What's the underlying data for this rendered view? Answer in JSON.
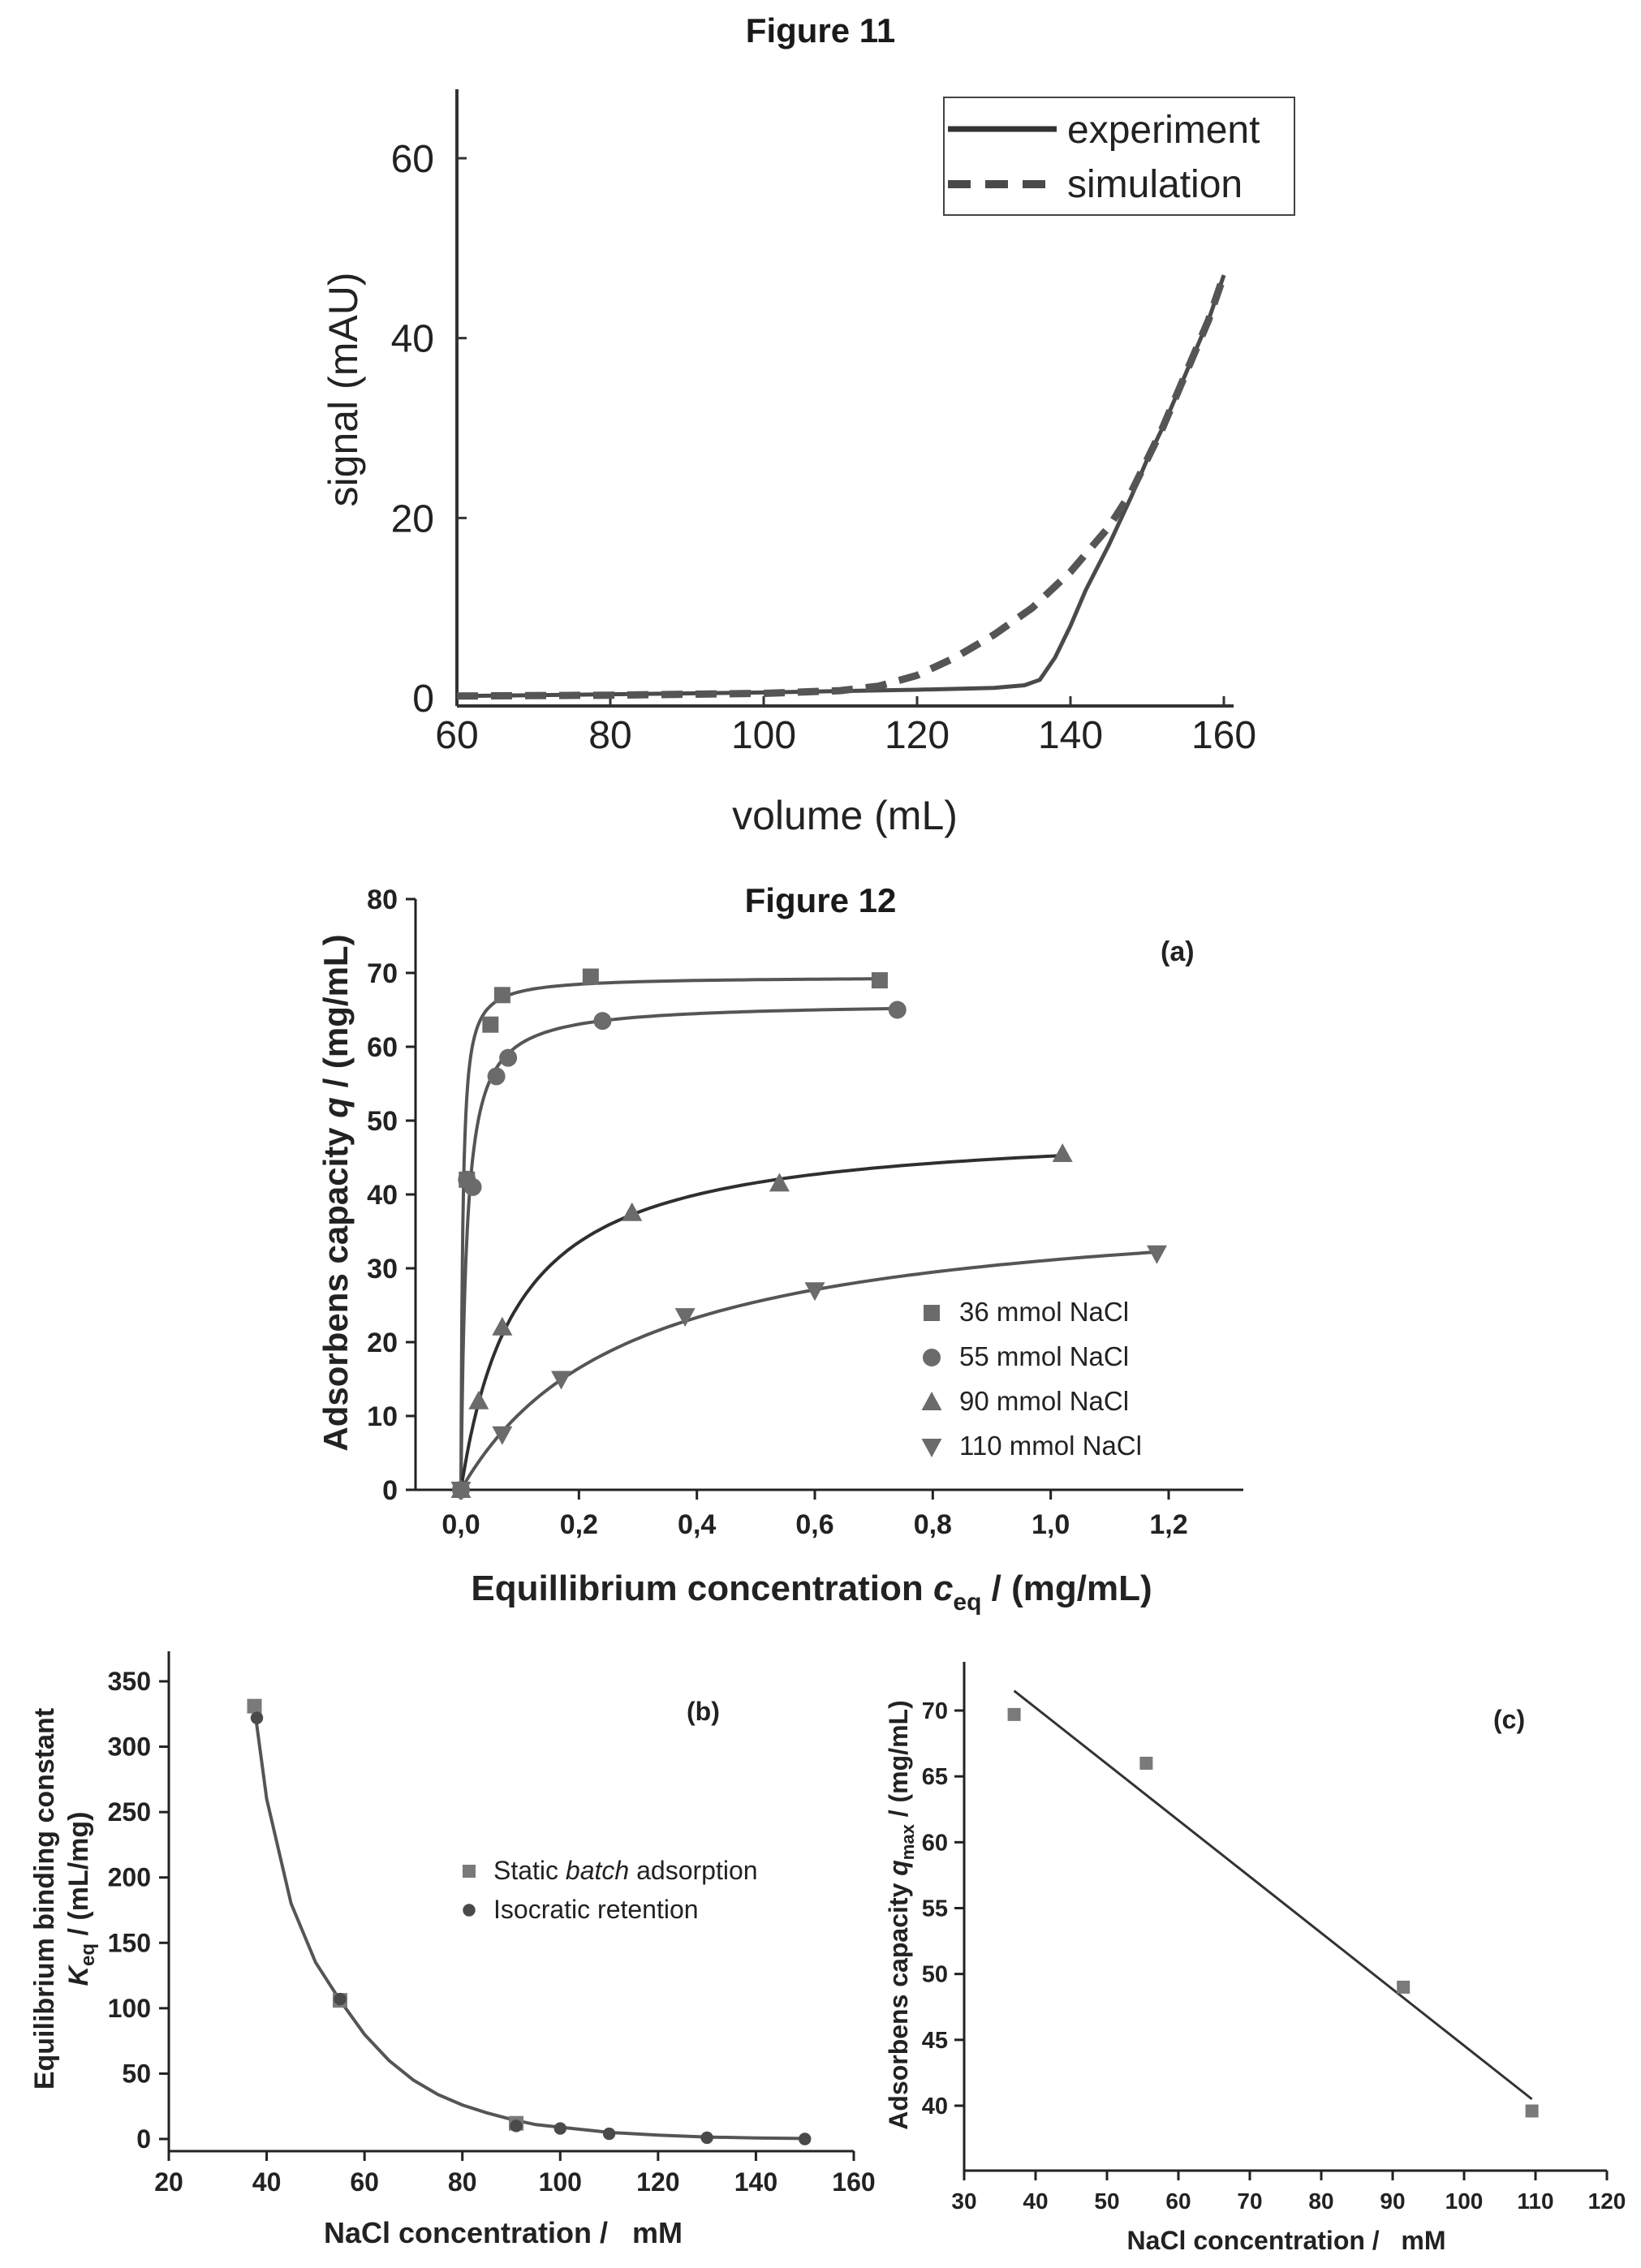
{
  "figure11": {
    "title": "Figure 11",
    "chart_data": {
      "type": "line",
      "title": "",
      "xlabel": "volume (mL)",
      "ylabel": "signal (mAU)",
      "xlim": [
        60,
        162
      ],
      "ylim": [
        -2,
        70
      ],
      "xticks": [
        60,
        80,
        100,
        120,
        140,
        160
      ],
      "yticks": [
        0,
        20,
        40,
        60
      ],
      "legend_position": "top-right",
      "series": [
        {
          "name": "experiment",
          "style": "solid",
          "x": [
            60,
            80,
            100,
            120,
            130,
            134,
            136,
            138,
            140,
            142,
            145,
            148,
            150,
            152,
            155,
            158,
            160
          ],
          "y": [
            0.2,
            0.4,
            0.6,
            0.9,
            1.1,
            1.4,
            2.0,
            4.5,
            8.0,
            12.0,
            17.0,
            22.5,
            26.5,
            30.0,
            36.0,
            42.0,
            47.0
          ]
        },
        {
          "name": "simulation",
          "style": "dashed",
          "x": [
            60,
            80,
            100,
            110,
            115,
            120,
            125,
            130,
            135,
            140,
            145,
            148,
            150,
            152,
            155,
            158,
            160
          ],
          "y": [
            0.2,
            0.3,
            0.5,
            0.8,
            1.3,
            2.5,
            4.5,
            7.0,
            10.0,
            14.0,
            19.0,
            23.0,
            26.5,
            30.0,
            36.0,
            42.0,
            47.0
          ]
        }
      ]
    }
  },
  "figure12": {
    "title": "Figure 12",
    "panel_a": {
      "label": "(a)",
      "chart_data": {
        "type": "scatter",
        "xlabel_main": "Equillibrium concentration ",
        "xlabel_var": "c",
        "xlabel_sub": "eq",
        "xlabel_unit": " / (mg/mL)",
        "ylabel_main": "Adsorbens capacity ",
        "ylabel_var": "q",
        "ylabel_unit": " / (mg/mL)",
        "xlim": [
          -0.05,
          1.28
        ],
        "ylim": [
          0,
          80
        ],
        "xticks": [
          "0,0",
          "0,2",
          "0,4",
          "0,6",
          "0,8",
          "1,0",
          "1,2"
        ],
        "yticks": [
          0,
          10,
          20,
          30,
          40,
          50,
          60,
          70,
          80
        ],
        "legend_position": "bottom-right",
        "series": [
          {
            "name": "36 mmol NaCl",
            "marker": "square",
            "x": [
              0.0,
              0.01,
              0.05,
              0.07,
              0.22,
              0.71
            ],
            "y": [
              0,
              42,
              63,
              67,
              69.5,
              69
            ],
            "fit": {
              "qmax": 69.5,
              "K": 330
            }
          },
          {
            "name": "55 mmol NaCl",
            "marker": "circle",
            "x": [
              0.0,
              0.01,
              0.02,
              0.06,
              0.08,
              0.24,
              0.74
            ],
            "y": [
              0,
              42,
              41,
              56,
              58.5,
              63.5,
              65
            ],
            "fit": {
              "qmax": 66,
              "K": 107
            }
          },
          {
            "name": "90 mmol NaCl",
            "marker": "triangle-up",
            "x": [
              0.0,
              0.03,
              0.07,
              0.29,
              0.54,
              1.02
            ],
            "y": [
              0,
              12,
              22,
              37.5,
              41.5,
              45.5
            ],
            "fit": {
              "qmax": 49.5,
              "K": 10.5
            }
          },
          {
            "name": "110 mmol NaCl",
            "marker": "triangle-down",
            "x": [
              0.0,
              0.07,
              0.17,
              0.38,
              0.6,
              1.18
            ],
            "y": [
              0,
              7.5,
              15,
              23.5,
              27,
              32
            ],
            "fit": {
              "qmax": 40,
              "K": 3.5
            }
          }
        ]
      }
    },
    "panel_b": {
      "label": "(b)",
      "chart_data": {
        "type": "scatter",
        "xlabel": "NaCl concentration /   mM",
        "ylabel_line1": "Equilibrium binding constant",
        "ylabel_var": "K",
        "ylabel_sub": "eq",
        "ylabel_unit": " / (mL/mg)",
        "xlim": [
          20,
          160
        ],
        "ylim": [
          -10,
          370
        ],
        "xticks": [
          20,
          40,
          60,
          80,
          100,
          120,
          140,
          160
        ],
        "yticks": [
          0,
          50,
          100,
          150,
          200,
          250,
          300,
          350
        ],
        "legend_position": "center-right",
        "series": [
          {
            "name_prefix": "Static ",
            "name_italic": "batch",
            "name_suffix": " adsorption",
            "marker": "square",
            "x": [
              37.5,
              55,
              91
            ],
            "y": [
              331,
              106,
              12
            ]
          },
          {
            "name_prefix": "Isocratic retention",
            "name_italic": "",
            "name_suffix": "",
            "marker": "circle",
            "x": [
              38,
              55,
              91,
              100,
              110,
              130,
              150
            ],
            "y": [
              322,
              107,
              10,
              8,
              4,
              1,
              0
            ]
          }
        ],
        "fit_points": {
          "x": [
            37.5,
            40,
            45,
            50,
            55,
            60,
            65,
            70,
            75,
            80,
            85,
            90,
            95,
            100,
            110,
            120,
            130,
            140,
            150
          ],
          "y": [
            330,
            260,
            180,
            135,
            106,
            80,
            60,
            45,
            34,
            26,
            20,
            15,
            11,
            9,
            5,
            3,
            1.5,
            0.8,
            0.4
          ]
        }
      }
    },
    "panel_c": {
      "label": "(c)",
      "chart_data": {
        "type": "scatter",
        "xlabel": "NaCl concentration /   mM",
        "ylabel_main": "Adsorbens capacity ",
        "ylabel_var": "q",
        "ylabel_sub": "max",
        "ylabel_unit": " / (mg/mL)",
        "xlim": [
          30,
          120
        ],
        "ylim": [
          35,
          73
        ],
        "xticks": [
          30,
          40,
          50,
          60,
          70,
          80,
          90,
          100,
          110,
          120
        ],
        "yticks": [
          40,
          45,
          50,
          55,
          60,
          65,
          70
        ],
        "series": [
          {
            "name": "",
            "marker": "square",
            "x": [
              37,
              55.5,
              91.5,
              109.5
            ],
            "y": [
              69.7,
              66,
              49,
              39.6
            ]
          }
        ],
        "fit_line": {
          "x": [
            37,
            109.5
          ],
          "y": [
            71.5,
            40.5
          ]
        }
      }
    }
  }
}
